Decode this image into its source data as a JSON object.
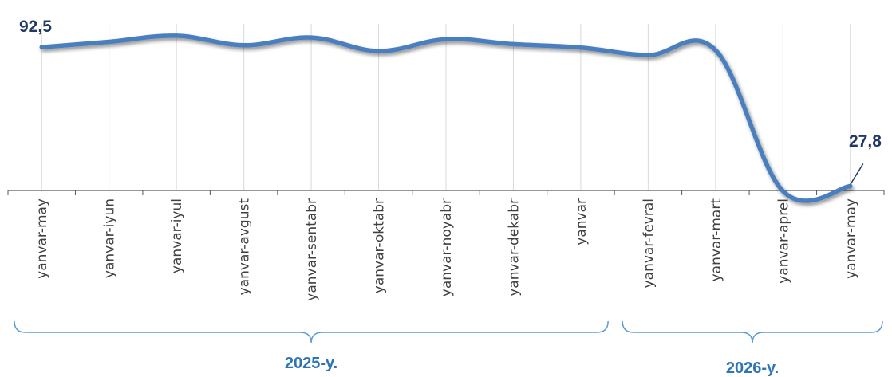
{
  "chart_data": {
    "type": "line",
    "categories": [
      "yanvar-may",
      "yanvar-iyun",
      "yanvar-iyul",
      "yanvar-avgust",
      "yanvar-sentabr",
      "yanvar-oktabr",
      "yanvar-noyabr",
      "yanvar-dekabr",
      "yanvar",
      "yanvar-fevral",
      "yanvar-mart",
      "yanvar-aprel",
      "yanvar-may"
    ],
    "series": [
      {
        "values": [
          92.5,
          95.0,
          97.8,
          93.4,
          97.0,
          90.7,
          96.2,
          93.9,
          92.3,
          88.8,
          91.1,
          25.5,
          27.8
        ],
        "color": "#4a7ebf"
      }
    ],
    "data_labels": [
      {
        "index": 0,
        "text": "92,5"
      },
      {
        "index": 12,
        "text": "27,8"
      }
    ],
    "groups": [
      {
        "label": "2025-y.",
        "from": 0,
        "to": 8
      },
      {
        "label": "2026-y.",
        "from": 9,
        "to": 12
      }
    ],
    "ylim": [
      25,
      100
    ],
    "grid": "vertical"
  }
}
